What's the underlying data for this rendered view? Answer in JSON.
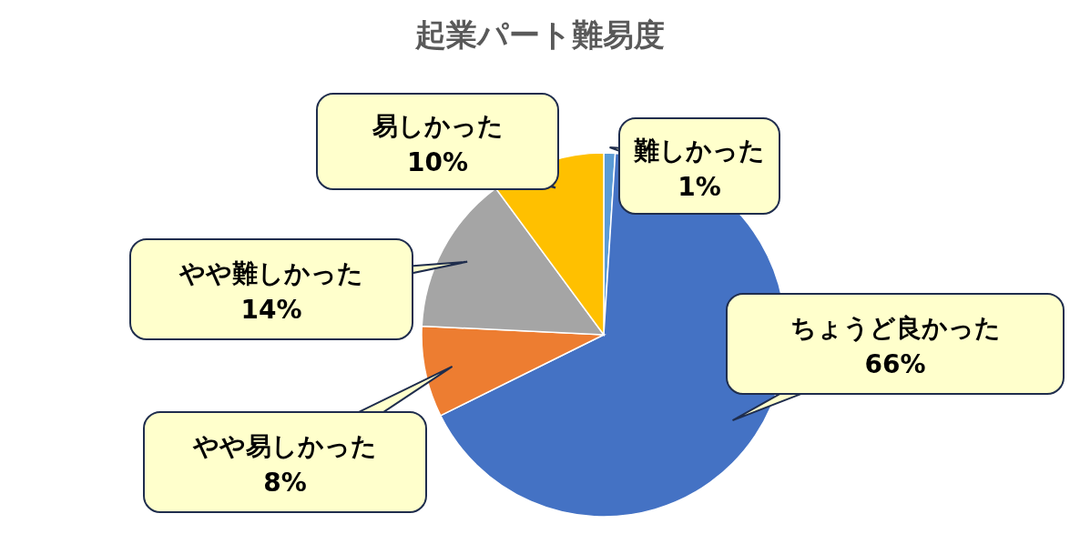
{
  "chart_data": {
    "type": "pie",
    "title": "起業パート難易度",
    "categories": [
      "難しかった",
      "ちょうど良かった",
      "やや易しかった",
      "やや難しかった",
      "易しかった"
    ],
    "values": [
      1,
      66,
      8,
      14,
      10
    ],
    "value_labels": [
      "1%",
      "66%",
      "8%",
      "14%",
      "10%"
    ],
    "colors": [
      "#5b9bd5",
      "#4472c4",
      "#ed7d31",
      "#a5a5a5",
      "#ffc000"
    ],
    "legend": false
  }
}
